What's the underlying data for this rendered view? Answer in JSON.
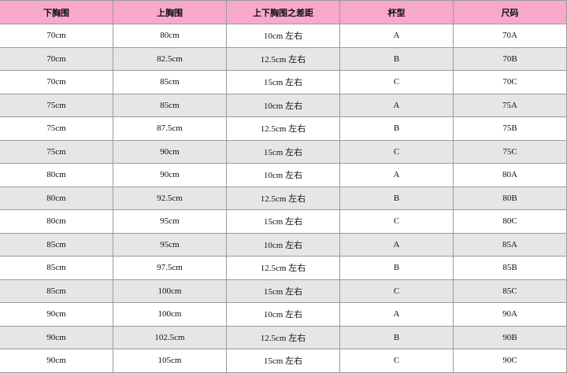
{
  "colors": {
    "header": "#f7a8cb",
    "alt_row": "#e6e6e6"
  },
  "headers": [
    "下胸围",
    "上胸围",
    "上下胸围之差距",
    "杯型",
    "尺码"
  ],
  "rows": [
    [
      "70cm",
      "80cm",
      "10cm 左右",
      "A",
      "70A"
    ],
    [
      "70cm",
      "82.5cm",
      "12.5cm 左右",
      "B",
      "70B"
    ],
    [
      "70cm",
      "85cm",
      "15cm 左右",
      "C",
      "70C"
    ],
    [
      "75cm",
      "85cm",
      "10cm 左右",
      "A",
      "75A"
    ],
    [
      "75cm",
      "87.5cm",
      "12.5cm 左右",
      "B",
      "75B"
    ],
    [
      "75cm",
      "90cm",
      "15cm 左右",
      "C",
      "75C"
    ],
    [
      "80cm",
      "90cm",
      "10cm 左右",
      "A",
      "80A"
    ],
    [
      "80cm",
      "92.5cm",
      "12.5cm 左右",
      "B",
      "80B"
    ],
    [
      "80cm",
      "95cm",
      "15cm 左右",
      "C",
      "80C"
    ],
    [
      "85cm",
      "95cm",
      "10cm 左右",
      "A",
      "85A"
    ],
    [
      "85cm",
      "97.5cm",
      "12.5cm 左右",
      "B",
      "85B"
    ],
    [
      "85cm",
      "100cm",
      "15cm 左右",
      "C",
      "85C"
    ],
    [
      "90cm",
      "100cm",
      "10cm 左右",
      "A",
      "90A"
    ],
    [
      "90cm",
      "102.5cm",
      "12.5cm 左右",
      "B",
      "90B"
    ],
    [
      "90cm",
      "105cm",
      "15cm 左右",
      "C",
      "90C"
    ]
  ]
}
